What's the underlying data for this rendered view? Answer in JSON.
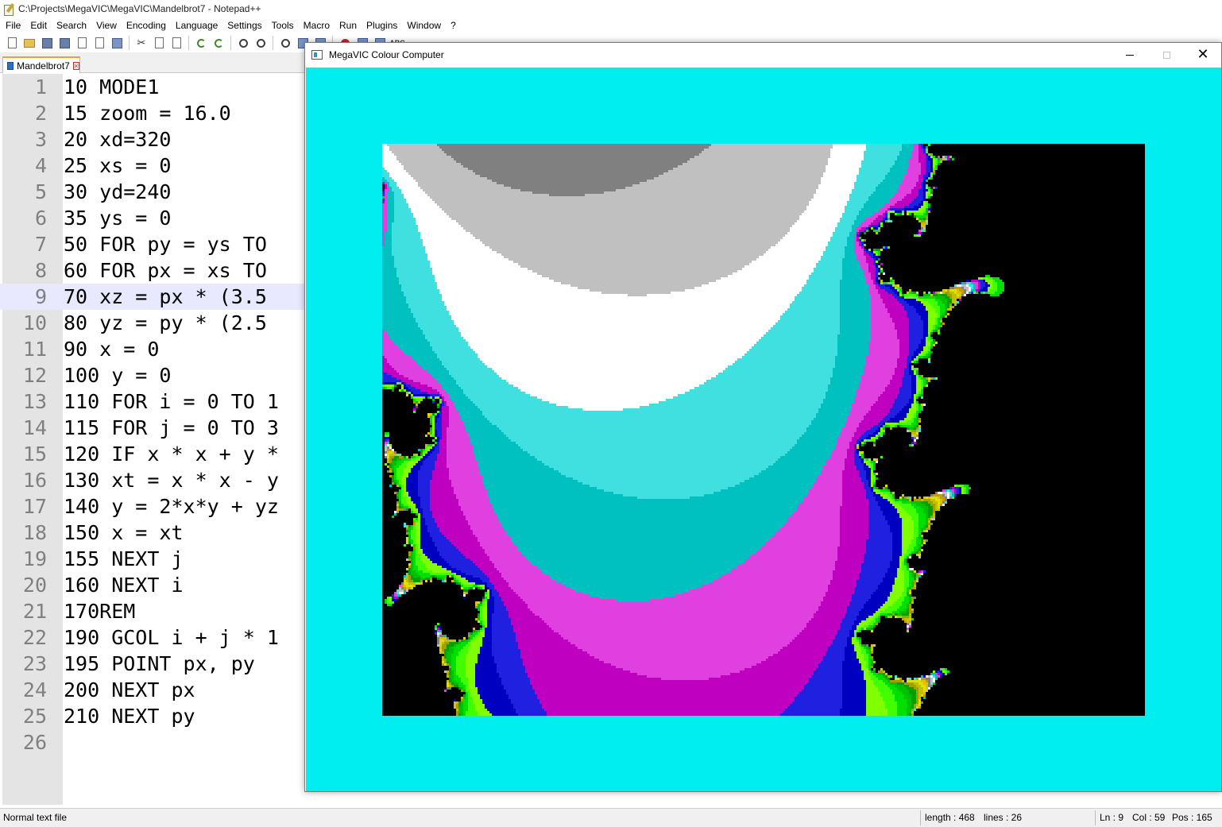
{
  "notepad": {
    "title": "C:\\Projects\\MegaVIC\\MegaVIC\\Mandelbrot7 - Notepad++",
    "menu": [
      "File",
      "Edit",
      "Search",
      "View",
      "Encoding",
      "Language",
      "Settings",
      "Tools",
      "Macro",
      "Run",
      "Plugins",
      "Window",
      "?"
    ],
    "toolbar_icons": [
      "new-file-icon",
      "open-folder-icon",
      "save-icon",
      "save-all-icon",
      "close-icon",
      "close-all-icon",
      "print-icon",
      "cut-icon",
      "copy-icon",
      "paste-icon",
      "undo-icon",
      "redo-icon",
      "find-icon",
      "replace-icon",
      "zoom-in-icon",
      "wrap-icon",
      "indent-guide-icon",
      "record-macro-icon",
      "stop-macro-icon",
      "play-macro-icon",
      "spellcheck-icon"
    ],
    "toolbar_abc": "ABC",
    "tab": {
      "label": "Mandelbrot7"
    },
    "current_line": 9,
    "lines": [
      {
        "n": "1",
        "code": "10 MODE1"
      },
      {
        "n": "2",
        "code": "15 zoom = 16.0"
      },
      {
        "n": "3",
        "code": "20 xd=320"
      },
      {
        "n": "4",
        "code": "25 xs = 0"
      },
      {
        "n": "5",
        "code": "30 yd=240"
      },
      {
        "n": "6",
        "code": "35 ys = 0"
      },
      {
        "n": "7",
        "code": "50 FOR py = ys TO"
      },
      {
        "n": "8",
        "code": "60 FOR px = xs TO"
      },
      {
        "n": "9",
        "code": "70 xz = px * (3.5"
      },
      {
        "n": "10",
        "code": "80 yz = py * (2.5"
      },
      {
        "n": "11",
        "code": "90 x = 0"
      },
      {
        "n": "12",
        "code": "100 y = 0"
      },
      {
        "n": "13",
        "code": "110 FOR i = 0 TO 1"
      },
      {
        "n": "14",
        "code": "115 FOR j = 0 TO 3"
      },
      {
        "n": "15",
        "code": "120 IF x * x + y *"
      },
      {
        "n": "16",
        "code": "130 xt = x * x - y"
      },
      {
        "n": "17",
        "code": "140 y = 2*x*y + yz"
      },
      {
        "n": "18",
        "code": "150 x = xt"
      },
      {
        "n": "19",
        "code": "155 NEXT j"
      },
      {
        "n": "20",
        "code": "160 NEXT i"
      },
      {
        "n": "21",
        "code": "170REM"
      },
      {
        "n": "22",
        "code": "190 GCOL i + j * 1"
      },
      {
        "n": "23",
        "code": "195 POINT px, py"
      },
      {
        "n": "24",
        "code": "200 NEXT px"
      },
      {
        "n": "25",
        "code": "210 NEXT py"
      },
      {
        "n": "26",
        "code": ""
      }
    ],
    "status": {
      "file_type": "Normal text file",
      "length": "length : 468",
      "lines": "lines : 26",
      "ln": "Ln : 9",
      "col": "Col : 59",
      "pos": "Pos : 165"
    }
  },
  "megavic": {
    "title": "MegaVIC Colour Computer",
    "border_color": "#00eef0",
    "palette": [
      "#000000",
      "#0000c0",
      "#2020e0",
      "#c000c0",
      "#e040e0",
      "#00c0c0",
      "#40e0e0",
      "#ffffff",
      "#c0c0c0",
      "#808080",
      "#c0a000",
      "#e0c000",
      "#e0e000",
      "#c0c000",
      "#a0a000",
      "#00a000",
      "#00c000",
      "#00e000",
      "#40ff00",
      "#80ff00"
    ]
  }
}
